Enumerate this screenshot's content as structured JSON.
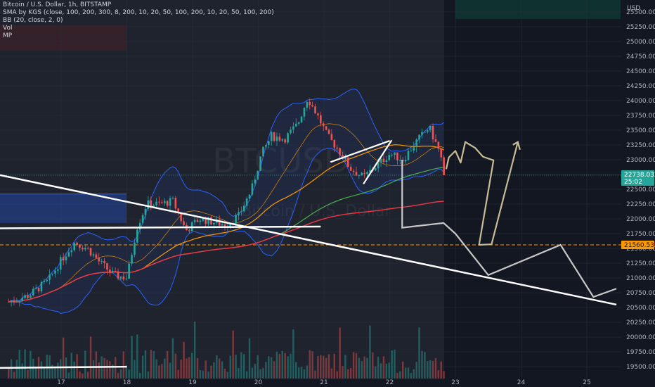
{
  "legend": {
    "title": "Bitcoin / U.S. Dollar, 1h, BITSTAMP",
    "sma": "SMA by KGS (close, 100, 200, 300, 8, 200, 10, 20, 50, 100, 200, 10, 20, 50, 100, 200)",
    "bb": "BB (20, close, 2, 0)",
    "vol": "Vol",
    "mp": "MP"
  },
  "watermark": {
    "main": "BTCUSD",
    "sub": "Bitcoin / U.S. Dollar"
  },
  "currency": "USD",
  "price_tag": {
    "value": "22738.03",
    "countdown": "25:02",
    "color": "#26a69a"
  },
  "level_tag": {
    "value": "21560.53",
    "color": "#ff9800"
  },
  "colors": {
    "background": "#131722",
    "up": "#26a69a",
    "down": "#ef5350",
    "bb": "#2962ff",
    "ma_orange": "#ff9800",
    "ma_green": "#4caf50",
    "ma_red": "#f23645",
    "drawing_white": "#ffffff",
    "projection": "#c8c8c8",
    "projection_tan": "#c8bc96"
  },
  "chart_data": {
    "type": "candlestick",
    "symbol": "BTCUSD",
    "exchange": "BITSTAMP",
    "interval": "1h",
    "x_ticks": [
      "17",
      "18",
      "19",
      "20",
      "21",
      "22",
      "23",
      "24",
      "25"
    ],
    "y_ticks": [
      19500,
      19750,
      20000,
      20250,
      20500,
      20750,
      21000,
      21250,
      21500,
      21750,
      22000,
      22250,
      22500,
      22750,
      23000,
      23250,
      23500,
      23750,
      24000,
      24250,
      24500,
      24750,
      25000,
      25250,
      25500
    ],
    "ylim": [
      19300,
      25700
    ],
    "last_price": 22738.03,
    "horizontal_level": 21560.53,
    "close_path": [
      [
        16.2,
        20600
      ],
      [
        16.5,
        20700
      ],
      [
        16.8,
        20950
      ],
      [
        17.0,
        21300
      ],
      [
        17.2,
        21600
      ],
      [
        17.4,
        21500
      ],
      [
        17.6,
        21250
      ],
      [
        17.8,
        21050
      ],
      [
        18.0,
        21000
      ],
      [
        18.15,
        21850
      ],
      [
        18.3,
        22250
      ],
      [
        18.5,
        22250
      ],
      [
        18.7,
        22300
      ],
      [
        18.9,
        21800
      ],
      [
        19.1,
        22000
      ],
      [
        19.3,
        21950
      ],
      [
        19.5,
        21900
      ],
      [
        19.7,
        22050
      ],
      [
        19.9,
        22500
      ],
      [
        20.05,
        23100
      ],
      [
        20.2,
        23400
      ],
      [
        20.4,
        23350
      ],
      [
        20.6,
        23600
      ],
      [
        20.75,
        24050
      ],
      [
        20.9,
        23750
      ],
      [
        21.05,
        23400
      ],
      [
        21.2,
        23200
      ],
      [
        21.4,
        22850
      ],
      [
        21.6,
        22700
      ],
      [
        21.8,
        22900
      ],
      [
        22.0,
        23100
      ],
      [
        22.2,
        23000
      ],
      [
        22.4,
        23300
      ],
      [
        22.6,
        23550
      ],
      [
        22.75,
        23150
      ],
      [
        22.85,
        22740
      ]
    ]
  }
}
